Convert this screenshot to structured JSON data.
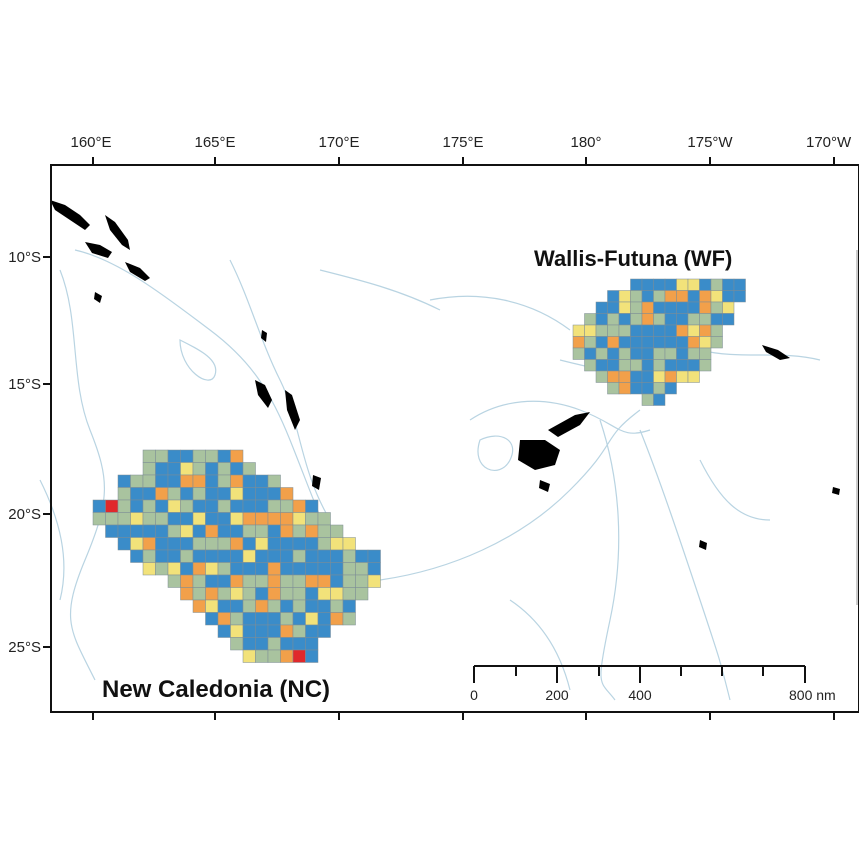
{
  "map": {
    "top_ticks": [
      "160°E",
      "165°E",
      "170°E",
      "175°E",
      "180°",
      "175°W",
      "170°W"
    ],
    "left_ticks": [
      "10°S",
      "15°S",
      "20°S",
      "25°S"
    ],
    "regions": [
      {
        "id": "wf",
        "label": "Wallis-Futuna (WF)"
      },
      {
        "id": "nc",
        "label": "New Caledonia (NC)"
      }
    ],
    "scale_bar": {
      "labels": [
        "0",
        "200",
        "400",
        "800 nm"
      ]
    }
  },
  "colors": {
    "blue": "#3a8cc9",
    "grey_green": "#a9c39f",
    "yellow": "#f2e27a",
    "orange": "#f2a04a",
    "red": "#e0282b",
    "land": "#000000",
    "bathymetry": "#b9d4e2"
  }
}
